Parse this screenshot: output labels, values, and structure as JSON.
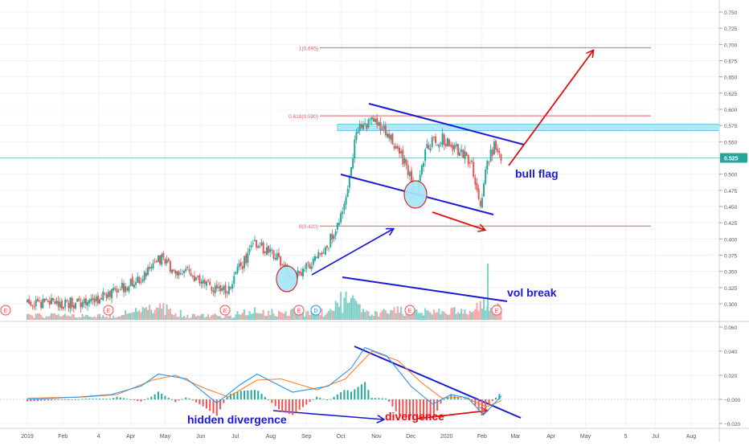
{
  "colors": {
    "up": "#26a69a",
    "down": "#ef5350",
    "volume_up": "#7fd0c8",
    "volume_down": "#f3a6a4",
    "macd_line": "#2196f3",
    "signal_line": "#ff7f2a",
    "drawing_blue": "#1a1ad6",
    "drawing_red": "#e01010",
    "fib_line": "#e06060",
    "resistance_zone": "#a8e6f7",
    "price_tag": "#26a69a",
    "grid": "#f0f3fa",
    "axis_text": "#555555"
  },
  "chart_data": [
    {
      "type": "candlestick",
      "title": "",
      "price_axis_ticks": [
        "0.750",
        "0.725",
        "0.700",
        "0.675",
        "0.650",
        "0.625",
        "0.600",
        "0.575",
        "0.550",
        "0.525",
        "0.500",
        "0.475",
        "0.450",
        "0.425",
        "0.400",
        "0.375",
        "0.350",
        "0.325",
        "0.300"
      ],
      "ylim": [
        0.29,
        0.76
      ],
      "last_price": "0.525",
      "x_axis_labels": [
        "2019",
        "Feb",
        "4",
        "Apr",
        "May",
        "Jun",
        "Jul",
        "Aug",
        "Sep",
        "Oct",
        "Nov",
        "Dec",
        "2020",
        "Feb",
        "Mar",
        "Apr",
        "May",
        "5",
        "Jul",
        "Aug"
      ],
      "fib_levels": [
        {
          "label": "1(0.695)",
          "value": 0.695
        },
        {
          "label": "0.618(0.590)",
          "value": 0.59
        },
        {
          "label": "0(0.420)",
          "value": 0.42
        }
      ],
      "resistance_zone": [
        0.567,
        0.577
      ],
      "price_path": [
        [
          "2019-01-01",
          0.302
        ],
        [
          "2019-02-01",
          0.301
        ],
        [
          "2019-03-01",
          0.303
        ],
        [
          "2019-03-20",
          0.322
        ],
        [
          "2019-04-10",
          0.336
        ],
        [
          "2019-04-25",
          0.372
        ],
        [
          "2019-05-10",
          0.352
        ],
        [
          "2019-05-25",
          0.344
        ],
        [
          "2019-06-10",
          0.326
        ],
        [
          "2019-06-25",
          0.322
        ],
        [
          "2019-07-05",
          0.355
        ],
        [
          "2019-07-18",
          0.392
        ],
        [
          "2019-08-05",
          0.376
        ],
        [
          "2019-08-20",
          0.34
        ],
        [
          "2019-09-05",
          0.362
        ],
        [
          "2019-09-20",
          0.392
        ],
        [
          "2019-10-05",
          0.452
        ],
        [
          "2019-10-15",
          0.57
        ],
        [
          "2019-10-30",
          0.582
        ],
        [
          "2019-11-10",
          0.562
        ],
        [
          "2019-11-25",
          0.52
        ],
        [
          "2019-12-05",
          0.47
        ],
        [
          "2019-12-15",
          0.545
        ],
        [
          "2019-12-28",
          0.555
        ],
        [
          "2020-01-10",
          0.54
        ],
        [
          "2020-01-22",
          0.52
        ],
        [
          "2020-01-31",
          0.455
        ],
        [
          "2020-02-05",
          0.515
        ],
        [
          "2020-02-12",
          0.545
        ],
        [
          "2020-02-18",
          0.525
        ]
      ],
      "annotations": [
        "bull flag",
        "vol break"
      ],
      "event_markers": [
        "E",
        "E",
        "E",
        "E",
        "E",
        "D",
        "E"
      ]
    },
    {
      "type": "line",
      "title": "",
      "indicator_axis_ticks": [
        "0.060",
        "0.040",
        "0.020",
        "−0.000",
        "−0.020"
      ],
      "ylim": [
        -0.023,
        0.063
      ],
      "series": [
        {
          "values": [
            [
              "2019-01-01",
              0.0
            ],
            [
              "2019-02-15",
              0.002
            ],
            [
              "2019-03-15",
              0.004
            ],
            [
              "2019-04-10",
              0.011
            ],
            [
              "2019-04-25",
              0.021
            ],
            [
              "2019-05-20",
              0.017
            ],
            [
              "2019-06-15",
              -0.003
            ],
            [
              "2019-07-05",
              0.012
            ],
            [
              "2019-07-20",
              0.021
            ],
            [
              "2019-08-20",
              0.006
            ],
            [
              "2019-09-20",
              0.011
            ],
            [
              "2019-10-10",
              0.026
            ],
            [
              "2019-10-22",
              0.043
            ],
            [
              "2019-11-10",
              0.036
            ],
            [
              "2019-12-01",
              0.011
            ],
            [
              "2019-12-20",
              -0.004
            ],
            [
              "2020-01-05",
              0.004
            ],
            [
              "2020-01-20",
              0.001
            ],
            [
              "2020-02-02",
              -0.013
            ],
            [
              "2020-02-18",
              0.003
            ]
          ]
        },
        {
          "values": [
            [
              "2019-01-01",
              0.001
            ],
            [
              "2019-02-20",
              0.002
            ],
            [
              "2019-03-20",
              0.004
            ],
            [
              "2019-04-20",
              0.016
            ],
            [
              "2019-05-10",
              0.02
            ],
            [
              "2019-06-05",
              0.009
            ],
            [
              "2019-06-25",
              0.002
            ],
            [
              "2019-07-20",
              0.016
            ],
            [
              "2019-08-10",
              0.017
            ],
            [
              "2019-09-10",
              0.008
            ],
            [
              "2019-10-05",
              0.017
            ],
            [
              "2019-10-28",
              0.04
            ],
            [
              "2019-11-20",
              0.032
            ],
            [
              "2019-12-10",
              0.014
            ],
            [
              "2019-12-28",
              0.001
            ],
            [
              "2020-01-15",
              0.002
            ],
            [
              "2020-02-05",
              -0.006
            ],
            [
              "2020-02-18",
              -0.001
            ]
          ]
        }
      ],
      "annotations": [
        "hidden divergence",
        "divergence"
      ]
    }
  ]
}
